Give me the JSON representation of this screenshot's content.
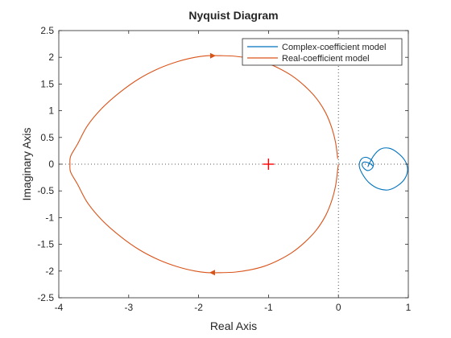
{
  "chart_data": {
    "type": "line",
    "title": "Nyquist Diagram",
    "xlabel": "Real Axis",
    "ylabel": "Imaginary Axis",
    "xlim": [
      -4,
      1
    ],
    "ylim": [
      -2.5,
      2.5
    ],
    "xticks": [
      -4,
      -3,
      -2,
      -1,
      0,
      1
    ],
    "xtick_labels": [
      "-4",
      "-3",
      "-2",
      "-1",
      "0",
      "1"
    ],
    "yticks": [
      -2.5,
      -2,
      -1.5,
      -1,
      -0.5,
      0,
      0.5,
      1,
      1.5,
      2,
      2.5
    ],
    "ytick_labels": [
      "-2.5",
      "-2",
      "-1.5",
      "-1",
      "-0.5",
      "0",
      "0.5",
      "1",
      "1.5",
      "2",
      "2.5"
    ],
    "grid": false,
    "legend_position": "top-right",
    "critical_point": {
      "x": -1,
      "y": 0,
      "color": "#ff0000"
    },
    "reference_lines": {
      "x": 0,
      "y": 0,
      "style": "dotted"
    },
    "series": [
      {
        "name": "Complex-coefficient model",
        "color": "#0072bd",
        "x": [
          0.42,
          0.5,
          0.6,
          0.72,
          0.84,
          0.95,
          0.99,
          0.95,
          0.85,
          0.72,
          0.58,
          0.45,
          0.36,
          0.3,
          0.32,
          0.39,
          0.47,
          0.5,
          0.48,
          0.42,
          0.36,
          0.34,
          0.37,
          0.44,
          0.5
        ],
        "y": [
          -0.05,
          0.15,
          0.28,
          0.3,
          0.22,
          0.07,
          -0.1,
          -0.27,
          -0.4,
          -0.48,
          -0.46,
          -0.36,
          -0.22,
          -0.05,
          0.08,
          0.13,
          0.08,
          0.0,
          -0.08,
          -0.12,
          -0.07,
          0.0,
          0.04,
          0.02,
          -0.04
        ]
      },
      {
        "name": "Real-coefficient model",
        "color": "#d95319",
        "x": [
          -0.01,
          -0.04,
          -0.1,
          -0.19,
          -0.32,
          -0.48,
          -0.66,
          -0.86,
          -1.06,
          -1.27,
          -1.48,
          -1.68,
          -1.86,
          -2.05,
          -2.3,
          -2.57,
          -2.85,
          -3.12,
          -3.38,
          -3.59,
          -3.73,
          -3.83,
          -3.84,
          -3.83,
          -3.73,
          -3.59,
          -3.38,
          -3.12,
          -2.85,
          -2.57,
          -2.3,
          -2.05,
          -1.86,
          -1.68,
          -1.48,
          -1.27,
          -1.06,
          -0.86,
          -0.66,
          -0.48,
          -0.32,
          -0.19,
          -0.1,
          -0.04,
          -0.01,
          0.0
        ],
        "y": [
          0.1,
          0.4,
          0.7,
          0.98,
          1.24,
          1.46,
          1.65,
          1.8,
          1.91,
          1.98,
          2.02,
          2.03,
          2.03,
          2.0,
          1.92,
          1.79,
          1.6,
          1.35,
          1.05,
          0.72,
          0.38,
          0.15,
          0.0,
          -0.15,
          -0.38,
          -0.72,
          -1.05,
          -1.35,
          -1.6,
          -1.79,
          -1.92,
          -2.0,
          -2.03,
          -2.03,
          -2.02,
          -1.98,
          -1.91,
          -1.8,
          -1.65,
          -1.46,
          -1.24,
          -0.98,
          -0.7,
          -0.4,
          -0.1,
          0.0
        ],
        "arrows": [
          {
            "x": -1.8,
            "y": 2.03,
            "direction": "right"
          },
          {
            "x": -1.8,
            "y": -2.03,
            "direction": "left"
          }
        ]
      }
    ]
  }
}
